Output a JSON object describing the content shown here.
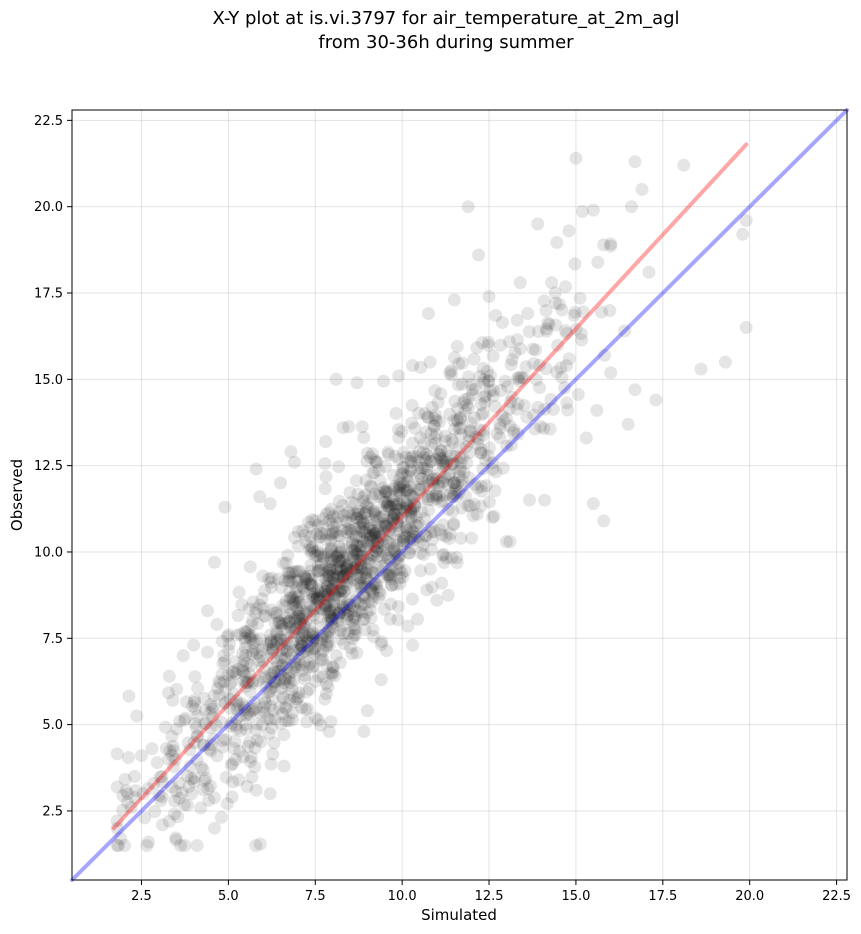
{
  "chart_data": {
    "type": "scatter",
    "title": "X-Y plot at is.vi.3797 for air_temperature_at_2m_agl",
    "subtitle": "from 30-36h during summer",
    "xlabel": "Simulated",
    "ylabel": "Observed",
    "xlim": [
      0.5,
      22.8
    ],
    "ylim": [
      0.5,
      22.8
    ],
    "xticks": [
      "2.5",
      "5.0",
      "7.5",
      "10.0",
      "12.5",
      "15.0",
      "17.5",
      "20.0",
      "22.5"
    ],
    "yticks": [
      "2.5",
      "5.0",
      "7.5",
      "10.0",
      "12.5",
      "15.0",
      "17.5",
      "20.0",
      "22.5"
    ],
    "grid": true,
    "point_color": "#000000",
    "point_alpha": 0.1,
    "n_points_approx": 1600,
    "lines": [
      {
        "label": "",
        "color": "#ff0000",
        "alpha": 0.35,
        "x": [
          1.7,
          19.9
        ],
        "y": [
          2.0,
          21.8
        ]
      },
      {
        "label": "",
        "color": "#0000ff",
        "alpha": 0.35,
        "x": [
          0.5,
          22.8
        ],
        "y": [
          0.5,
          22.8
        ]
      }
    ],
    "sample_points": [
      [
        15.0,
        21.4
      ],
      [
        16.7,
        21.3
      ],
      [
        18.1,
        21.2
      ],
      [
        16.9,
        20.5
      ],
      [
        11.9,
        20.0
      ],
      [
        16.6,
        20.0
      ],
      [
        13.9,
        19.5
      ],
      [
        15.5,
        19.9
      ],
      [
        19.9,
        19.6
      ],
      [
        19.8,
        19.2
      ],
      [
        14.8,
        19.3
      ],
      [
        15.8,
        18.9
      ],
      [
        17.1,
        18.1
      ],
      [
        19.9,
        16.5
      ],
      [
        16.4,
        16.4
      ],
      [
        19.3,
        15.5
      ],
      [
        18.6,
        15.3
      ],
      [
        17.3,
        14.4
      ],
      [
        16.7,
        14.7
      ],
      [
        16.5,
        13.7
      ],
      [
        15.6,
        14.1
      ],
      [
        15.3,
        13.3
      ],
      [
        15.5,
        11.4
      ],
      [
        15.8,
        10.9
      ],
      [
        12.2,
        18.6
      ],
      [
        11.5,
        17.3
      ],
      [
        13.4,
        17.8
      ],
      [
        12.5,
        17.4
      ],
      [
        14.3,
        17.8
      ],
      [
        10.3,
        15.4
      ],
      [
        10.8,
        15.5
      ],
      [
        9.9,
        15.1
      ],
      [
        8.1,
        15.0
      ],
      [
        8.7,
        14.9
      ],
      [
        7.8,
        13.2
      ],
      [
        8.3,
        13.6
      ],
      [
        6.8,
        12.9
      ],
      [
        6.9,
        12.6
      ],
      [
        5.8,
        12.4
      ],
      [
        6.5,
        12.0
      ],
      [
        5.9,
        11.6
      ],
      [
        4.9,
        11.3
      ],
      [
        6.2,
        11.4
      ],
      [
        4.6,
        9.7
      ],
      [
        13.0,
        10.3
      ],
      [
        13.1,
        10.3
      ],
      [
        14.1,
        11.5
      ],
      [
        12.6,
        11.0
      ],
      [
        11.0,
        8.6
      ],
      [
        10.3,
        7.3
      ],
      [
        9.4,
        6.3
      ],
      [
        9.0,
        5.4
      ],
      [
        8.9,
        4.8
      ],
      [
        7.9,
        4.8
      ],
      [
        6.6,
        3.8
      ],
      [
        6.2,
        3.0
      ],
      [
        5.8,
        3.1
      ],
      [
        5.3,
        3.4
      ],
      [
        4.1,
        1.5
      ],
      [
        4.6,
        2.0
      ],
      [
        2.7,
        1.6
      ],
      [
        3.3,
        2.2
      ],
      [
        3.1,
        2.1
      ],
      [
        1.9,
        1.7
      ],
      [
        2.2,
        2.6
      ],
      [
        2.1,
        3.0
      ],
      [
        2.3,
        3.5
      ],
      [
        2.5,
        4.1
      ],
      [
        2.8,
        4.3
      ],
      [
        3.4,
        5.7
      ],
      [
        3.3,
        6.4
      ],
      [
        3.7,
        7.0
      ],
      [
        4.0,
        7.3
      ],
      [
        4.4,
        8.3
      ],
      [
        3.6,
        5.1
      ],
      [
        5.0,
        7.6
      ],
      [
        4.4,
        7.1
      ]
    ]
  }
}
